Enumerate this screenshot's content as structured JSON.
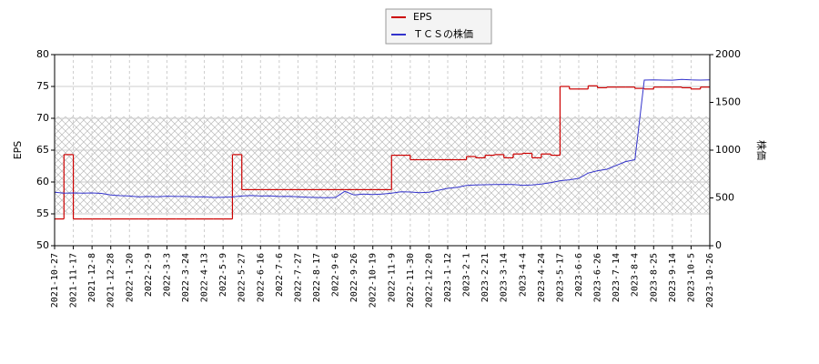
{
  "chart_data": {
    "type": "line",
    "y_label": "EPS",
    "y2_label": "株価",
    "categories": [
      "2021-10-27",
      null,
      "2021-11-17",
      null,
      "2021-12-8",
      null,
      "2021-12-28",
      null,
      "2022-1-20",
      null,
      "2022-2-9",
      null,
      "2022-3-3",
      null,
      "2022-3-24",
      null,
      "2022-4-13",
      null,
      "2022-5-9",
      null,
      "2022-5-27",
      null,
      "2022-6-16",
      null,
      "2022-7-6",
      null,
      "2022-7-27",
      null,
      "2022-8-17",
      null,
      "2022-9-6",
      null,
      "2022-9-26",
      null,
      "2022-10-19",
      null,
      "2022-11-9",
      null,
      "2022-11-30",
      null,
      "2022-12-20",
      null,
      "2023-1-12",
      null,
      "2023-2-1",
      null,
      "2023-2-21",
      null,
      "2023-3-14",
      null,
      "2023-4-4",
      null,
      "2023-4-24",
      null,
      "2023-5-17",
      null,
      "2023-6-6",
      null,
      "2023-6-26",
      null,
      "2023-7-14",
      null,
      "2023-8-4",
      null,
      "2023-8-25",
      null,
      "2023-9-14",
      null,
      "2023-10-5",
      null,
      "2023-10-26"
    ],
    "series": [
      {
        "name": "EPS",
        "color": "#cc0000",
        "step": true,
        "values": [
          54.2,
          64.3,
          54.2,
          54.2,
          54.2,
          54.2,
          54.2,
          54.2,
          54.2,
          54.2,
          54.2,
          54.2,
          54.2,
          54.2,
          54.2,
          54.2,
          54.2,
          54.2,
          54.2,
          64.3,
          58.8,
          58.8,
          58.8,
          58.8,
          58.8,
          58.8,
          58.8,
          58.8,
          58.8,
          58.8,
          58.8,
          58.8,
          58.8,
          58.8,
          58.8,
          58.8,
          64.2,
          64.2,
          63.5,
          63.5,
          63.5,
          63.5,
          63.5,
          63.5,
          64,
          63.8,
          64.2,
          64.3,
          63.8,
          64.4,
          64.5,
          63.8,
          64.4,
          64.2,
          75,
          74.6,
          74.6,
          75.1,
          74.8,
          74.9,
          74.9,
          74.9,
          74.7,
          74.6,
          74.9,
          74.9,
          74.9,
          74.8,
          74.6,
          74.9,
          74.9
        ]
      },
      {
        "name": "ＴＣＳの株価",
        "color": "#3333cc",
        "axis": "y2",
        "values": [
          560,
          550,
          552,
          550,
          552,
          548,
          530,
          524,
          520,
          510,
          515,
          512,
          518,
          515,
          515,
          510,
          512,
          505,
          508,
          510,
          520,
          525,
          520,
          522,
          515,
          516,
          512,
          508,
          505,
          503,
          505,
          570,
          530,
          540,
          535,
          540,
          550,
          565,
          562,
          555,
          560,
          580,
          600,
          610,
          630,
          635,
          638,
          640,
          642,
          640,
          632,
          635,
          645,
          660,
          680,
          690,
          705,
          760,
          785,
          800,
          840,
          880,
          900,
          1733,
          1735,
          1733,
          1732,
          1740,
          1735,
          1733,
          1735
        ]
      }
    ],
    "ylim": [
      50,
      80
    ],
    "yticks": [
      50,
      55,
      60,
      65,
      70,
      75,
      80
    ],
    "y2lim": [
      0,
      2000
    ],
    "y2ticks": [
      0,
      500,
      1000,
      1500,
      2000
    ],
    "grid": true,
    "legend": "top"
  }
}
